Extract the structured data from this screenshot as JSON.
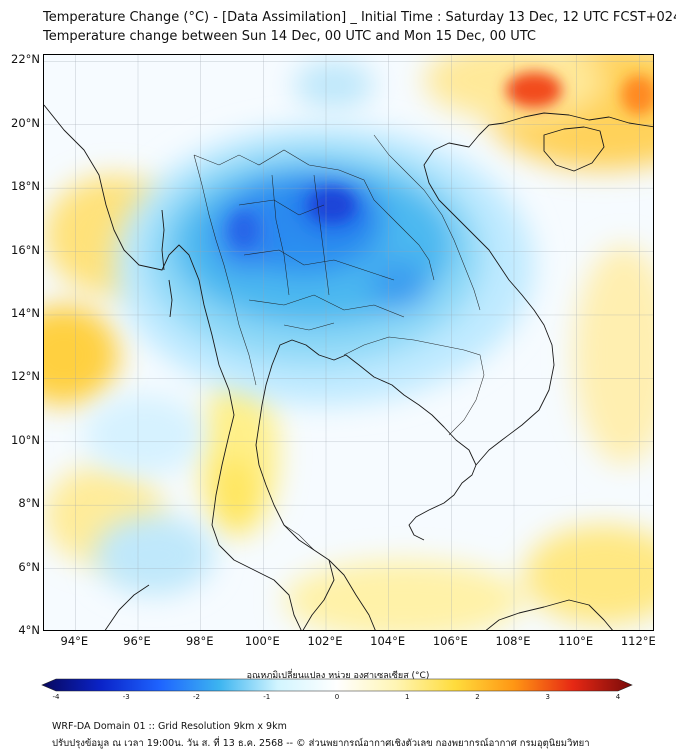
{
  "header": {
    "title_line1": "Temperature Change (°C) - [Data Assimilation] _ Initial Time : Saturday 13 Dec, 12 UTC FCST+024",
    "title_line2": "Temperature change between Sun 14 Dec, 00 UTC and Mon 15 Dec, 00 UTC"
  },
  "map": {
    "lat_labels": [
      "22°N",
      "20°N",
      "18°N",
      "16°N",
      "14°N",
      "12°N",
      "10°N",
      "8°N",
      "6°N",
      "4°N"
    ],
    "lon_labels": [
      "94°E",
      "96°E",
      "98°E",
      "100°E",
      "102°E",
      "104°E",
      "106°E",
      "108°E",
      "110°E",
      "112°E"
    ],
    "lat_values": [
      22,
      20,
      18,
      16,
      14,
      12,
      10,
      8,
      6,
      4
    ],
    "lon_values": [
      94,
      96,
      98,
      100,
      102,
      104,
      106,
      108,
      110,
      112
    ],
    "lon_range": [
      93,
      112.5
    ],
    "lat_range": [
      4,
      22.2
    ],
    "variable": "temperature change (°C)"
  },
  "colorbar": {
    "label": "อุณหภูมิเปลี่ยนแปลง หน่วย องศาเซลเซียส (°C)",
    "ticks": [
      "-4",
      "-3",
      "-2",
      "-1",
      "0",
      "1",
      "2",
      "3",
      "4"
    ],
    "min": -4,
    "max": 4,
    "colors": [
      "#08085e",
      "#0a23c8",
      "#1e64ff",
      "#3cb4f0",
      "#d2f5ff",
      "#ffffff",
      "#fff5b4",
      "#ffdc3c",
      "#ff9614",
      "#e62814",
      "#780a0a"
    ]
  },
  "footer": {
    "line1": "WRF-DA Domain 01 :: Grid Resolution 9km x 9km",
    "line2": "ปรับปรุงข้อมูล ณ เวลา 19:00น. วัน ส. ที่ 13 ธ.ค. 2568 -- © ส่วนพยากรณ์อากาศเชิงตัวเลข กองพยากรณ์อากาศ กรมอุตุนิยมวิทยา"
  }
}
